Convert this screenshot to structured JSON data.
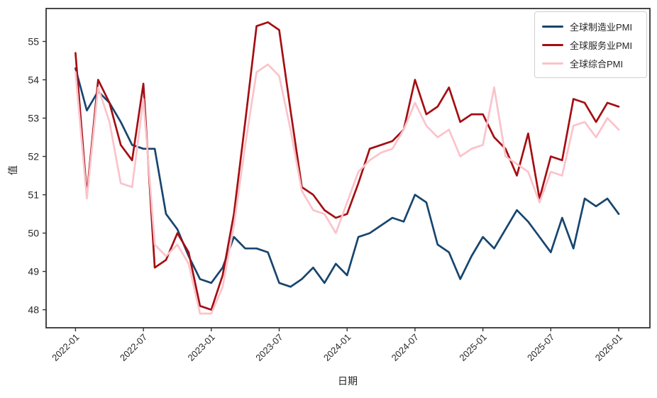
{
  "chart_data": {
    "type": "line",
    "title": "",
    "xlabel": "日期",
    "ylabel": "值",
    "grid": false,
    "legend_position": "upper right",
    "ylim": [
      47.53,
      55.86
    ],
    "y_ticks": [
      48,
      49,
      50,
      51,
      52,
      53,
      54,
      55
    ],
    "x_tick_labels": [
      "2022-01",
      "2022-07",
      "2023-01",
      "2023-07",
      "2024-01",
      "2024-07",
      "2025-01",
      "2025-07",
      "2026-01"
    ],
    "x": [
      "2022-01",
      "2022-02",
      "2022-03",
      "2022-04",
      "2022-05",
      "2022-06",
      "2022-07",
      "2022-08",
      "2022-09",
      "2022-10",
      "2022-11",
      "2022-12",
      "2023-01",
      "2023-02",
      "2023-03",
      "2023-04",
      "2023-05",
      "2023-06",
      "2023-07",
      "2023-08",
      "2023-09",
      "2023-10",
      "2023-11",
      "2023-12",
      "2024-01",
      "2024-02",
      "2024-03",
      "2024-04",
      "2024-05",
      "2024-06",
      "2024-07",
      "2024-08",
      "2024-09",
      "2024-10",
      "2024-11",
      "2024-12",
      "2025-01",
      "2025-02",
      "2025-03",
      "2025-04",
      "2025-05",
      "2025-06",
      "2025-07",
      "2025-08",
      "2025-09",
      "2025-10",
      "2025-11",
      "2025-12",
      "2026-01"
    ],
    "series": [
      {
        "name": "全球制造业PMI",
        "color": "#17456e",
        "values": [
          54.3,
          53.2,
          53.7,
          53.4,
          52.9,
          52.3,
          52.2,
          52.2,
          50.5,
          50.1,
          49.4,
          48.8,
          48.7,
          49.1,
          49.9,
          49.6,
          49.6,
          49.5,
          48.7,
          48.6,
          48.8,
          49.1,
          48.7,
          49.2,
          48.9,
          49.9,
          50.0,
          50.2,
          50.4,
          50.3,
          51.0,
          50.8,
          49.7,
          49.5,
          48.8,
          49.4,
          49.9,
          49.6,
          50.1,
          50.6,
          50.3,
          49.9,
          49.5,
          50.4,
          49.6,
          50.9,
          50.7,
          50.9,
          50.5
        ]
      },
      {
        "name": "全球服务业PMI",
        "color": "#a40e13",
        "values": [
          54.7,
          51.0,
          54.0,
          53.4,
          52.3,
          51.9,
          53.9,
          49.1,
          49.3,
          50.0,
          49.5,
          48.1,
          48.0,
          48.9,
          50.5,
          52.9,
          55.4,
          55.5,
          55.3,
          53.2,
          51.2,
          51.0,
          50.6,
          50.4,
          50.5,
          51.3,
          52.2,
          52.3,
          52.4,
          52.7,
          54.0,
          53.1,
          53.3,
          53.8,
          52.9,
          53.1,
          53.1,
          52.5,
          52.2,
          51.5,
          52.6,
          50.9,
          52.0,
          51.9,
          53.5,
          53.4,
          52.9,
          53.4,
          53.3
        ]
      },
      {
        "name": "全球综合PMI",
        "color": "#fbc3ca",
        "values": [
          54.2,
          50.9,
          53.8,
          52.9,
          51.3,
          51.2,
          53.5,
          49.7,
          49.4,
          49.7,
          49.2,
          47.9,
          47.9,
          48.6,
          50.2,
          52.3,
          54.2,
          54.4,
          54.1,
          52.7,
          51.1,
          50.6,
          50.5,
          50.0,
          50.8,
          51.6,
          51.9,
          52.1,
          52.2,
          52.7,
          53.4,
          52.8,
          52.5,
          52.7,
          52.0,
          52.2,
          52.3,
          53.8,
          52.0,
          51.8,
          51.6,
          50.8,
          51.6,
          51.5,
          52.8,
          52.9,
          52.5,
          53.0,
          52.7
        ]
      }
    ]
  }
}
